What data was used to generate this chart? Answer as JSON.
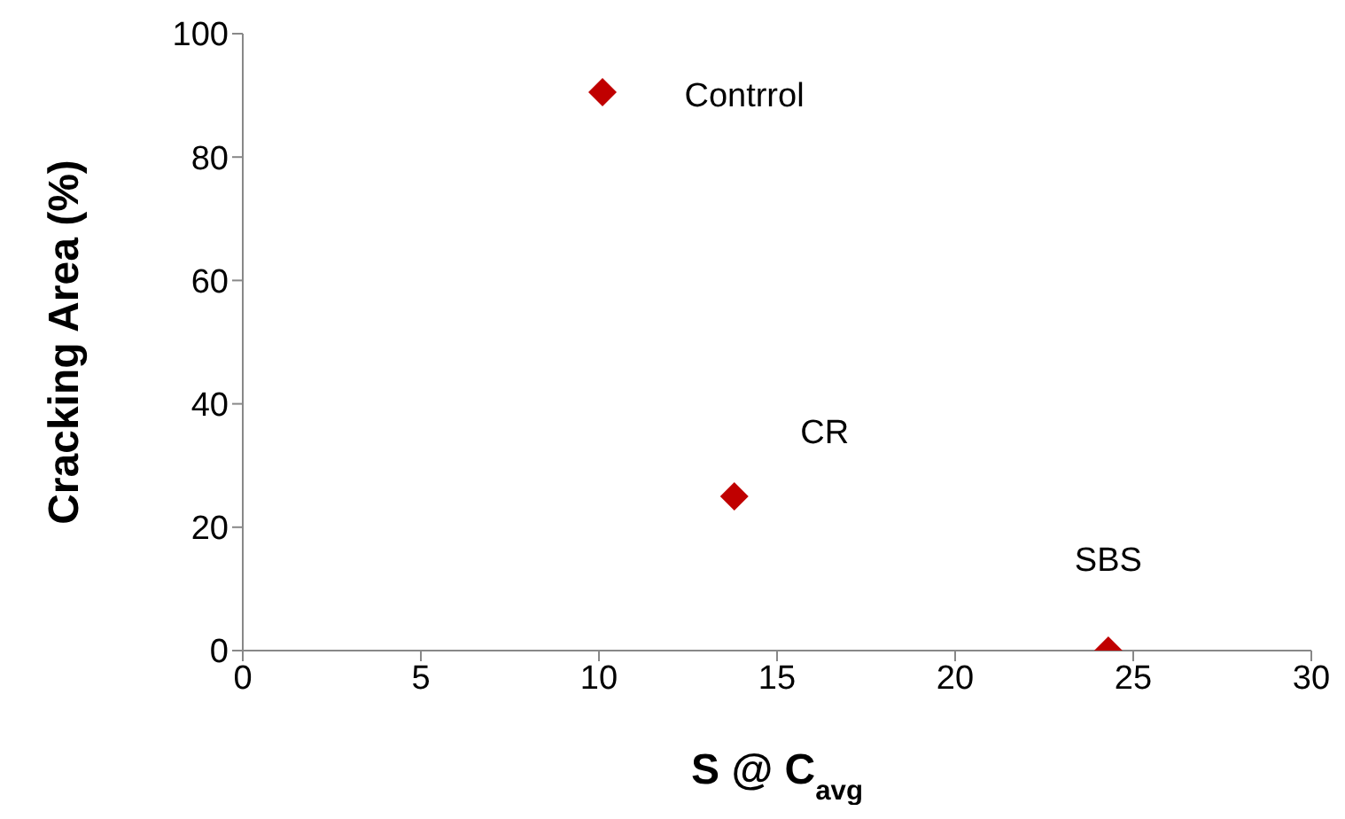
{
  "chart_data": {
    "type": "scatter",
    "xlabel": "S @ C$_{avg}$",
    "ylabel": "Cracking Area (%)",
    "x": [
      10.1,
      13.8,
      24.3
    ],
    "series": [
      {
        "color": "#c00000",
        "values": [
          90.5,
          25,
          0
        ]
      }
    ],
    "xlim": [
      0,
      30
    ],
    "xticks": [
      0,
      5,
      10,
      15,
      20,
      25,
      30
    ],
    "ylim": [
      0,
      100
    ],
    "yticks": [
      0,
      20,
      40,
      60,
      80,
      100
    ],
    "marker": "diamond",
    "grid": false,
    "legend": false,
    "annotations": [
      {
        "text": "Contrrol",
        "x": 10.1,
        "y": 90.5
      },
      {
        "text": "CR",
        "x": 13.8,
        "y": 25
      },
      {
        "text": "SBS",
        "x": 24.3,
        "y": 0
      }
    ]
  }
}
